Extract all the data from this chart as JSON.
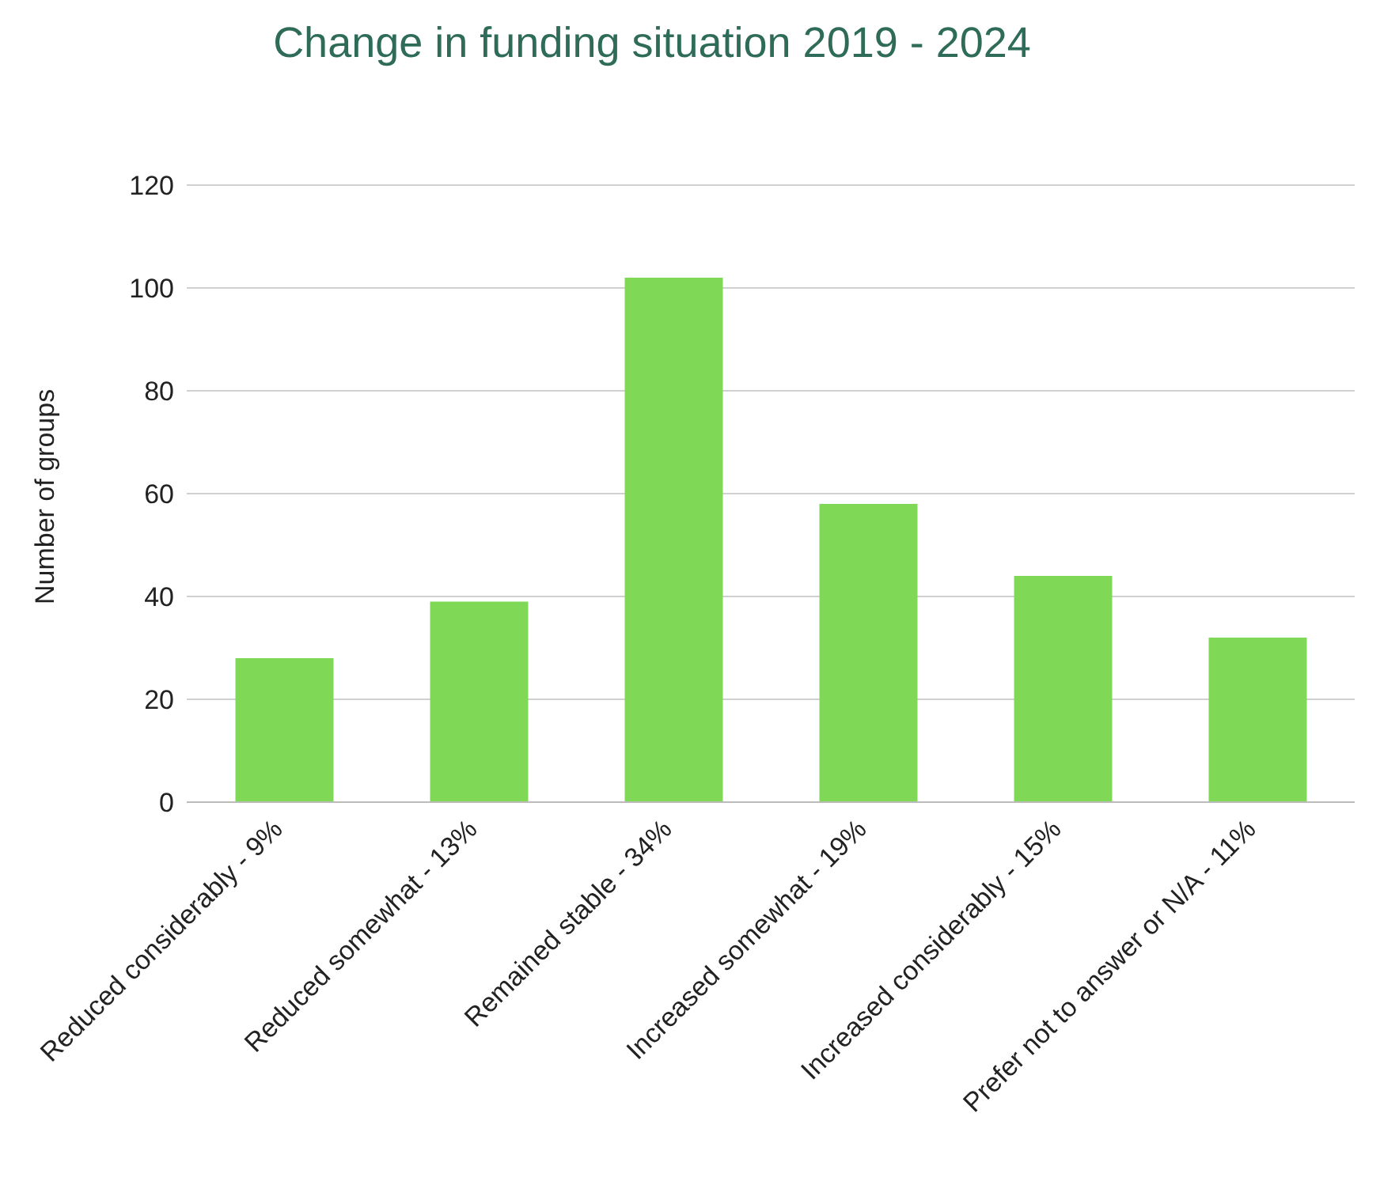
{
  "chart_data": {
    "type": "bar",
    "title": "Change in funding situation 2019 - 2024",
    "ylabel": "Number of groups",
    "categories": [
      "Reduced considerably - 9%",
      "Reduced somewhat - 13%",
      "Remained stable - 34%",
      "Increased somewhat - 19%",
      "Increased considerably - 15%",
      "Prefer not to answer or N/A - 11%"
    ],
    "values": [
      28,
      39,
      102,
      58,
      44,
      32
    ],
    "color": "#7fd957",
    "ylim": [
      0,
      120
    ],
    "yticks": [
      0,
      20,
      40,
      60,
      80,
      100,
      120
    ],
    "grid": "y"
  }
}
